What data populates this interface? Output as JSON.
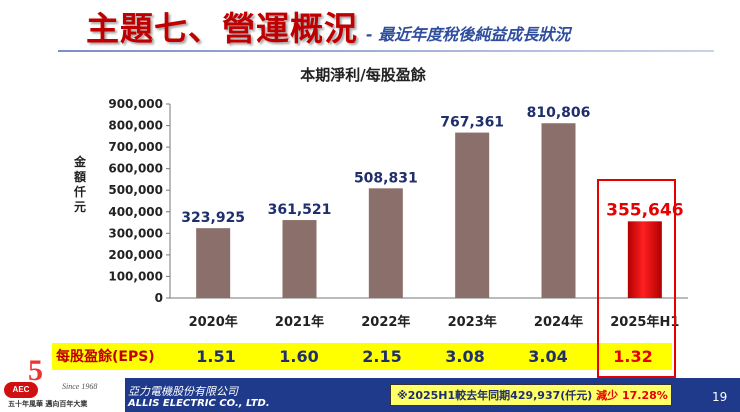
{
  "slide": {
    "title": "主題七、營運概況",
    "subtitle": "- 最近年度稅後純益成長狀況",
    "page_number": "19"
  },
  "chart_data": {
    "type": "bar",
    "title": "本期淨利/每股盈餘",
    "ylabel": "金額仟元",
    "xlabel": "",
    "categories": [
      "2020年",
      "2021年",
      "2022年",
      "2023年",
      "2024年",
      "2025年H1"
    ],
    "values": [
      323925,
      361521,
      508831,
      767361,
      810806,
      355646
    ],
    "value_labels": [
      "323,925",
      "361,521",
      "508,831",
      "767,361",
      "810,806",
      "355,646"
    ],
    "ylim": [
      0,
      900000
    ],
    "yticks": [
      0,
      100000,
      200000,
      300000,
      400000,
      500000,
      600000,
      700000,
      800000,
      900000
    ],
    "ytick_labels": [
      "0",
      "100,000",
      "200,000",
      "300,000",
      "400,000",
      "500,000",
      "600,000",
      "700,000",
      "800,000",
      "900,000"
    ],
    "highlight_index": 5,
    "grid": false,
    "colors": {
      "bar": "#8b6f6a",
      "highlight": "#e00000",
      "label": "#1f2f6b",
      "highlight_label": "#e60000"
    }
  },
  "eps": {
    "label": "每股盈餘(EPS)",
    "values": [
      "1.51",
      "1.60",
      "2.15",
      "3.08",
      "3.04",
      "1.32"
    ]
  },
  "footer": {
    "logo_text": "AEC",
    "since": "Since 1968",
    "slogan": "五十年風華 邁向百年大業",
    "company_cn": "亞力電機股份有限公司",
    "company_en": "ALLIS ELECTRIC CO., LTD.",
    "note_main": "※2025H1較去年同期429,937(仟元)",
    "note_change": "減少 17.28%",
    "bar_color": "#1f3a8a"
  }
}
